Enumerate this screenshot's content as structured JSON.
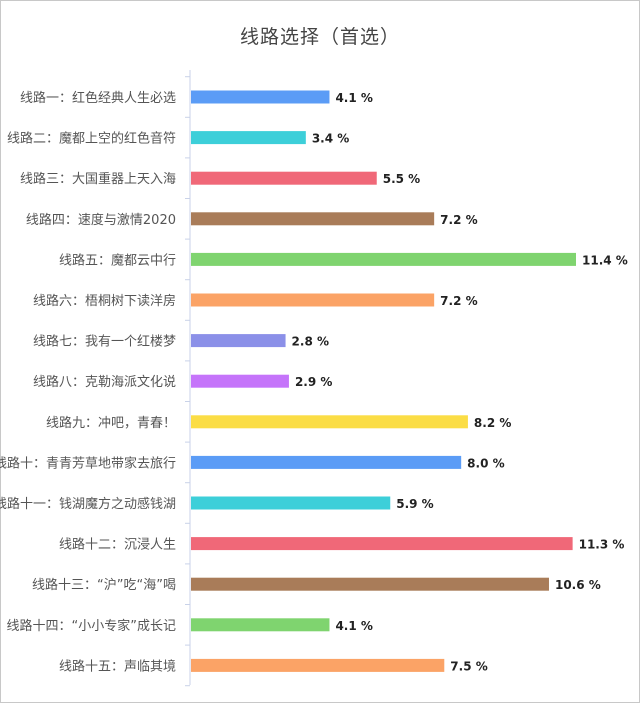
{
  "chart_data": {
    "type": "bar",
    "orientation": "horizontal",
    "title": "线路选择（首选）",
    "categories": [
      "线路一：红色经典人生必选",
      "线路二：魔都上空的红色音符",
      "线路三：大国重器上天入海",
      "线路四：速度与激情2020",
      "线路五：魔都云中行",
      "线路六：梧桐树下读洋房",
      "线路七：我有一个红楼梦",
      "线路八：克勒海派文化说",
      "线路九：冲吧，青春！",
      "线路十：青青芳草地带家去旅行",
      "线路十一：钱湖魔方之动感钱湖",
      "线路十二：沉浸人生",
      "线路十三：“沪”吃“海”喝",
      "线路十四：“小小专家”成长记",
      "线路十五：声临其境"
    ],
    "values": [
      4.1,
      3.4,
      5.5,
      7.2,
      11.4,
      7.2,
      2.8,
      2.9,
      8.2,
      8.0,
      5.9,
      11.3,
      10.6,
      4.1,
      7.5
    ],
    "value_labels": [
      "4.1 %",
      "3.4 %",
      "5.5 %",
      "7.2 %",
      "11.4 %",
      "7.2 %",
      "2.8 %",
      "2.9 %",
      "8.2 %",
      "8.0 %",
      "5.9 %",
      "11.3 %",
      "10.6 %",
      "4.1 %",
      "7.5 %"
    ],
    "colors": [
      "#5b9cf6",
      "#3dcfd9",
      "#f06878",
      "#a97c59",
      "#7fd46f",
      "#fba366",
      "#8b90e8",
      "#c574fa",
      "#fbdd45",
      "#5b9cf6",
      "#3dcfd9",
      "#f06878",
      "#a97c59",
      "#7fd46f",
      "#fba366"
    ],
    "xlim": [
      0,
      11.4
    ],
    "grid": false,
    "legend": "none"
  }
}
